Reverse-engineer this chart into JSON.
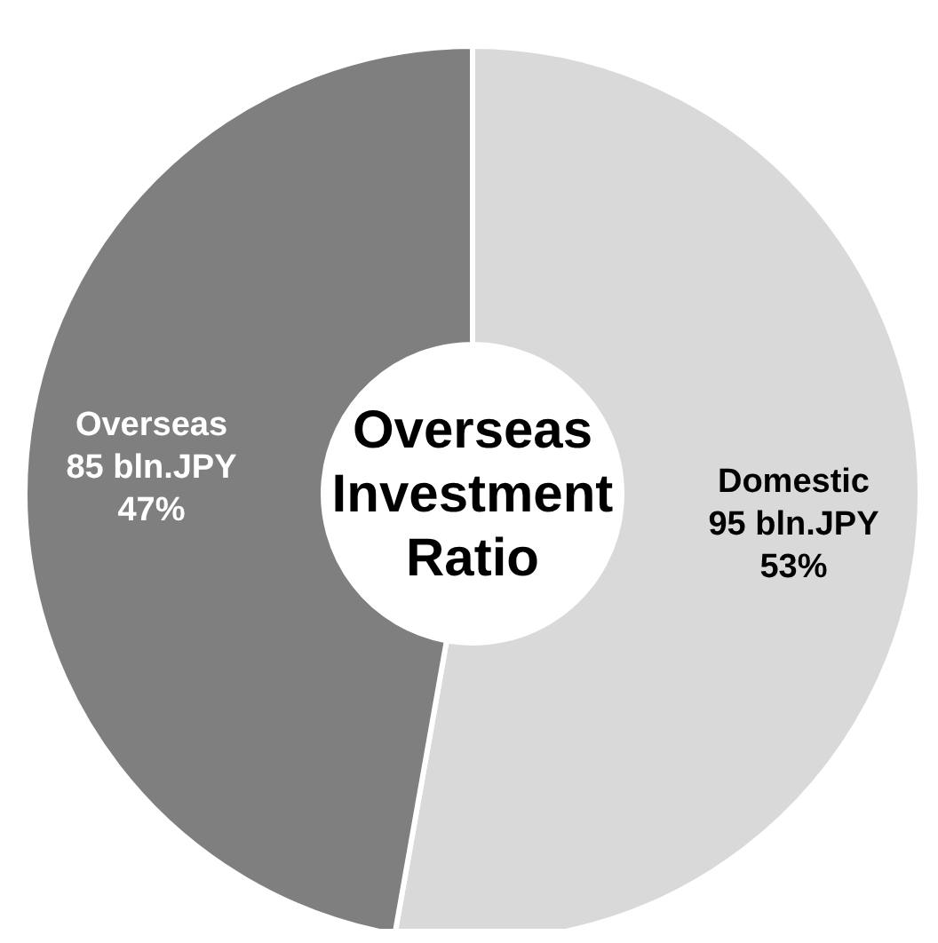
{
  "chart_data": {
    "type": "donut",
    "title": "Overseas Investment Ratio",
    "categories": [
      "Domestic",
      "Overseas"
    ],
    "values": [
      95,
      85
    ],
    "colors": [
      "#d9d9d9",
      "#7f7f7f"
    ],
    "value_labels": [
      "95 bln.JPY 53%",
      "85 bln.JPY 47%"
    ],
    "legend": false
  }
}
